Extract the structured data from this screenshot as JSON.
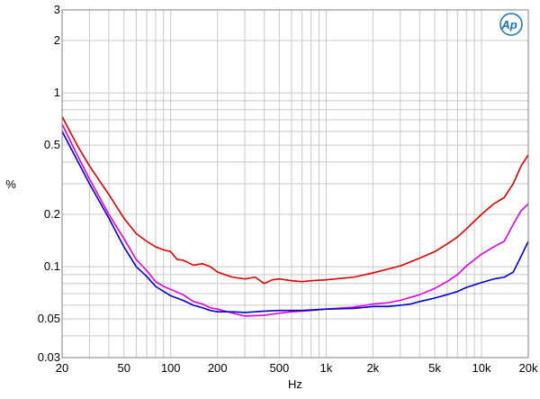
{
  "chart_data": {
    "type": "line",
    "title": "",
    "xlabel": "Hz",
    "ylabel": "%",
    "x_scale": "log",
    "y_scale": "log",
    "xlim": [
      20,
      20000
    ],
    "ylim": [
      0.03,
      3
    ],
    "grid": true,
    "legend": "none",
    "logo_text": "Ap",
    "x_tick_labels": [
      {
        "value": 20,
        "label": "20"
      },
      {
        "value": 50,
        "label": "50"
      },
      {
        "value": 100,
        "label": "100"
      },
      {
        "value": 200,
        "label": "200"
      },
      {
        "value": 500,
        "label": "500"
      },
      {
        "value": 1000,
        "label": "1k"
      },
      {
        "value": 2000,
        "label": "2k"
      },
      {
        "value": 5000,
        "label": "5k"
      },
      {
        "value": 10000,
        "label": "10k"
      },
      {
        "value": 20000,
        "label": "20k"
      }
    ],
    "y_tick_labels": [
      {
        "value": 3,
        "label": "3"
      },
      {
        "value": 2,
        "label": "2"
      },
      {
        "value": 1,
        "label": "1"
      },
      {
        "value": 0.5,
        "label": "0.5"
      },
      {
        "value": 0.2,
        "label": "0.2"
      },
      {
        "value": 0.1,
        "label": "0.1"
      },
      {
        "value": 0.05,
        "label": "0.05"
      },
      {
        "value": 0.03,
        "label": "0.03"
      }
    ],
    "series": [
      {
        "color": "#e00000",
        "points": [
          [
            20,
            0.73
          ],
          [
            25,
            0.5
          ],
          [
            30,
            0.38
          ],
          [
            40,
            0.26
          ],
          [
            50,
            0.19
          ],
          [
            60,
            0.155
          ],
          [
            70,
            0.14
          ],
          [
            80,
            0.13
          ],
          [
            90,
            0.125
          ],
          [
            100,
            0.122
          ],
          [
            110,
            0.11
          ],
          [
            120,
            0.109
          ],
          [
            140,
            0.102
          ],
          [
            160,
            0.104
          ],
          [
            180,
            0.1
          ],
          [
            200,
            0.093
          ],
          [
            250,
            0.087
          ],
          [
            300,
            0.085
          ],
          [
            350,
            0.087
          ],
          [
            400,
            0.08
          ],
          [
            450,
            0.084
          ],
          [
            500,
            0.085
          ],
          [
            600,
            0.083
          ],
          [
            700,
            0.082
          ],
          [
            800,
            0.083
          ],
          [
            1000,
            0.084
          ],
          [
            1500,
            0.087
          ],
          [
            2000,
            0.092
          ],
          [
            3000,
            0.101
          ],
          [
            4000,
            0.112
          ],
          [
            5000,
            0.122
          ],
          [
            6000,
            0.135
          ],
          [
            7000,
            0.148
          ],
          [
            8000,
            0.165
          ],
          [
            10000,
            0.2
          ],
          [
            12000,
            0.23
          ],
          [
            14000,
            0.25
          ],
          [
            16000,
            0.3
          ],
          [
            18000,
            0.38
          ],
          [
            20000,
            0.44
          ]
        ]
      },
      {
        "color": "#e000e0",
        "points": [
          [
            20,
            0.66
          ],
          [
            25,
            0.44
          ],
          [
            30,
            0.32
          ],
          [
            40,
            0.2
          ],
          [
            50,
            0.145
          ],
          [
            60,
            0.11
          ],
          [
            70,
            0.095
          ],
          [
            80,
            0.082
          ],
          [
            90,
            0.077
          ],
          [
            100,
            0.074
          ],
          [
            120,
            0.069
          ],
          [
            140,
            0.063
          ],
          [
            160,
            0.061
          ],
          [
            180,
            0.058
          ],
          [
            200,
            0.057
          ],
          [
            250,
            0.054
          ],
          [
            300,
            0.052
          ],
          [
            350,
            0.0523
          ],
          [
            400,
            0.0525
          ],
          [
            500,
            0.054
          ],
          [
            600,
            0.055
          ],
          [
            700,
            0.0555
          ],
          [
            800,
            0.056
          ],
          [
            1000,
            0.057
          ],
          [
            1500,
            0.0585
          ],
          [
            2000,
            0.061
          ],
          [
            2500,
            0.062
          ],
          [
            3000,
            0.064
          ],
          [
            4000,
            0.069
          ],
          [
            5000,
            0.075
          ],
          [
            6000,
            0.082
          ],
          [
            7000,
            0.09
          ],
          [
            8000,
            0.101
          ],
          [
            10000,
            0.118
          ],
          [
            12000,
            0.13
          ],
          [
            14000,
            0.14
          ],
          [
            16000,
            0.175
          ],
          [
            18000,
            0.21
          ],
          [
            20000,
            0.23
          ]
        ]
      },
      {
        "color": "#0000d0",
        "points": [
          [
            20,
            0.6
          ],
          [
            25,
            0.41
          ],
          [
            30,
            0.3
          ],
          [
            40,
            0.19
          ],
          [
            50,
            0.13
          ],
          [
            60,
            0.1
          ],
          [
            70,
            0.088
          ],
          [
            80,
            0.077
          ],
          [
            90,
            0.072
          ],
          [
            100,
            0.068
          ],
          [
            120,
            0.064
          ],
          [
            140,
            0.06
          ],
          [
            160,
            0.058
          ],
          [
            180,
            0.056
          ],
          [
            200,
            0.055
          ],
          [
            250,
            0.055
          ],
          [
            300,
            0.0545
          ],
          [
            350,
            0.055
          ],
          [
            400,
            0.0555
          ],
          [
            500,
            0.056
          ],
          [
            700,
            0.056
          ],
          [
            1000,
            0.057
          ],
          [
            1500,
            0.0575
          ],
          [
            2000,
            0.059
          ],
          [
            2500,
            0.059
          ],
          [
            3000,
            0.06
          ],
          [
            3500,
            0.061
          ],
          [
            4000,
            0.063
          ],
          [
            5000,
            0.066
          ],
          [
            6000,
            0.069
          ],
          [
            7000,
            0.072
          ],
          [
            8000,
            0.076
          ],
          [
            10000,
            0.081
          ],
          [
            12000,
            0.085
          ],
          [
            14000,
            0.087
          ],
          [
            16000,
            0.093
          ],
          [
            18000,
            0.115
          ],
          [
            20000,
            0.14
          ]
        ]
      }
    ]
  }
}
